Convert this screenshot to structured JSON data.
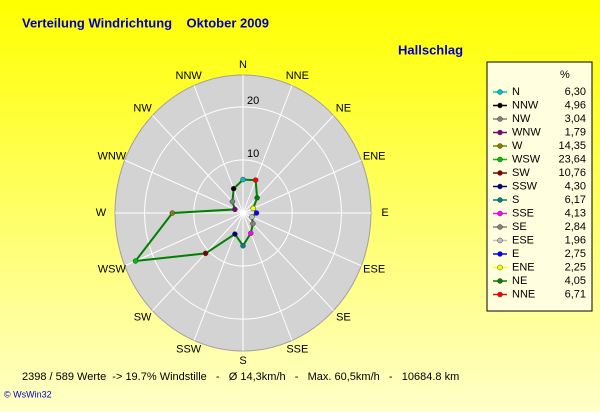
{
  "chart_data": {
    "type": "windrose",
    "title": "Verteilung Windrichtung    Oktober 2009",
    "subtitle": "Hallschlag",
    "categories": [
      "N",
      "NNW",
      "NW",
      "WNW",
      "W",
      "WSW",
      "SW",
      "SSW",
      "S",
      "SSE",
      "SE",
      "ESE",
      "E",
      "ENE",
      "NE",
      "NNE"
    ],
    "values": [
      6.3,
      4.96,
      3.04,
      1.79,
      14.35,
      23.64,
      10.76,
      4.3,
      6.17,
      4.13,
      2.84,
      1.96,
      2.75,
      2.25,
      4.05,
      6.71
    ],
    "value_labels": [
      "6,30",
      "4,96",
      "3,04",
      "1,79",
      "14,35",
      "23,64",
      "10,76",
      "4,30",
      "6,17",
      "4,13",
      "2,84",
      "1,96",
      "2,75",
      "2,25",
      "4,05",
      "6,71"
    ],
    "marker_colors": [
      "#00c0c0",
      "#000000",
      "#808080",
      "#800080",
      "#808000",
      "#00c000",
      "#800000",
      "#000080",
      "#008080",
      "#ff00ff",
      "#808080",
      "#c0c0c0",
      "#0000ff",
      "#ffff00",
      "#008000",
      "#ff0000"
    ],
    "color": "#008000",
    "rlim": [
      0,
      26
    ],
    "rticks": [
      10,
      20
    ],
    "legend_header": "%",
    "legend": "right",
    "footer": "2398 / 589 Werte  -> 19.7% Windstille   -   Ø 14,3km/h   -   Max. 60,5km/h   -   10684.8 km",
    "credit": "© WsWin32"
  }
}
